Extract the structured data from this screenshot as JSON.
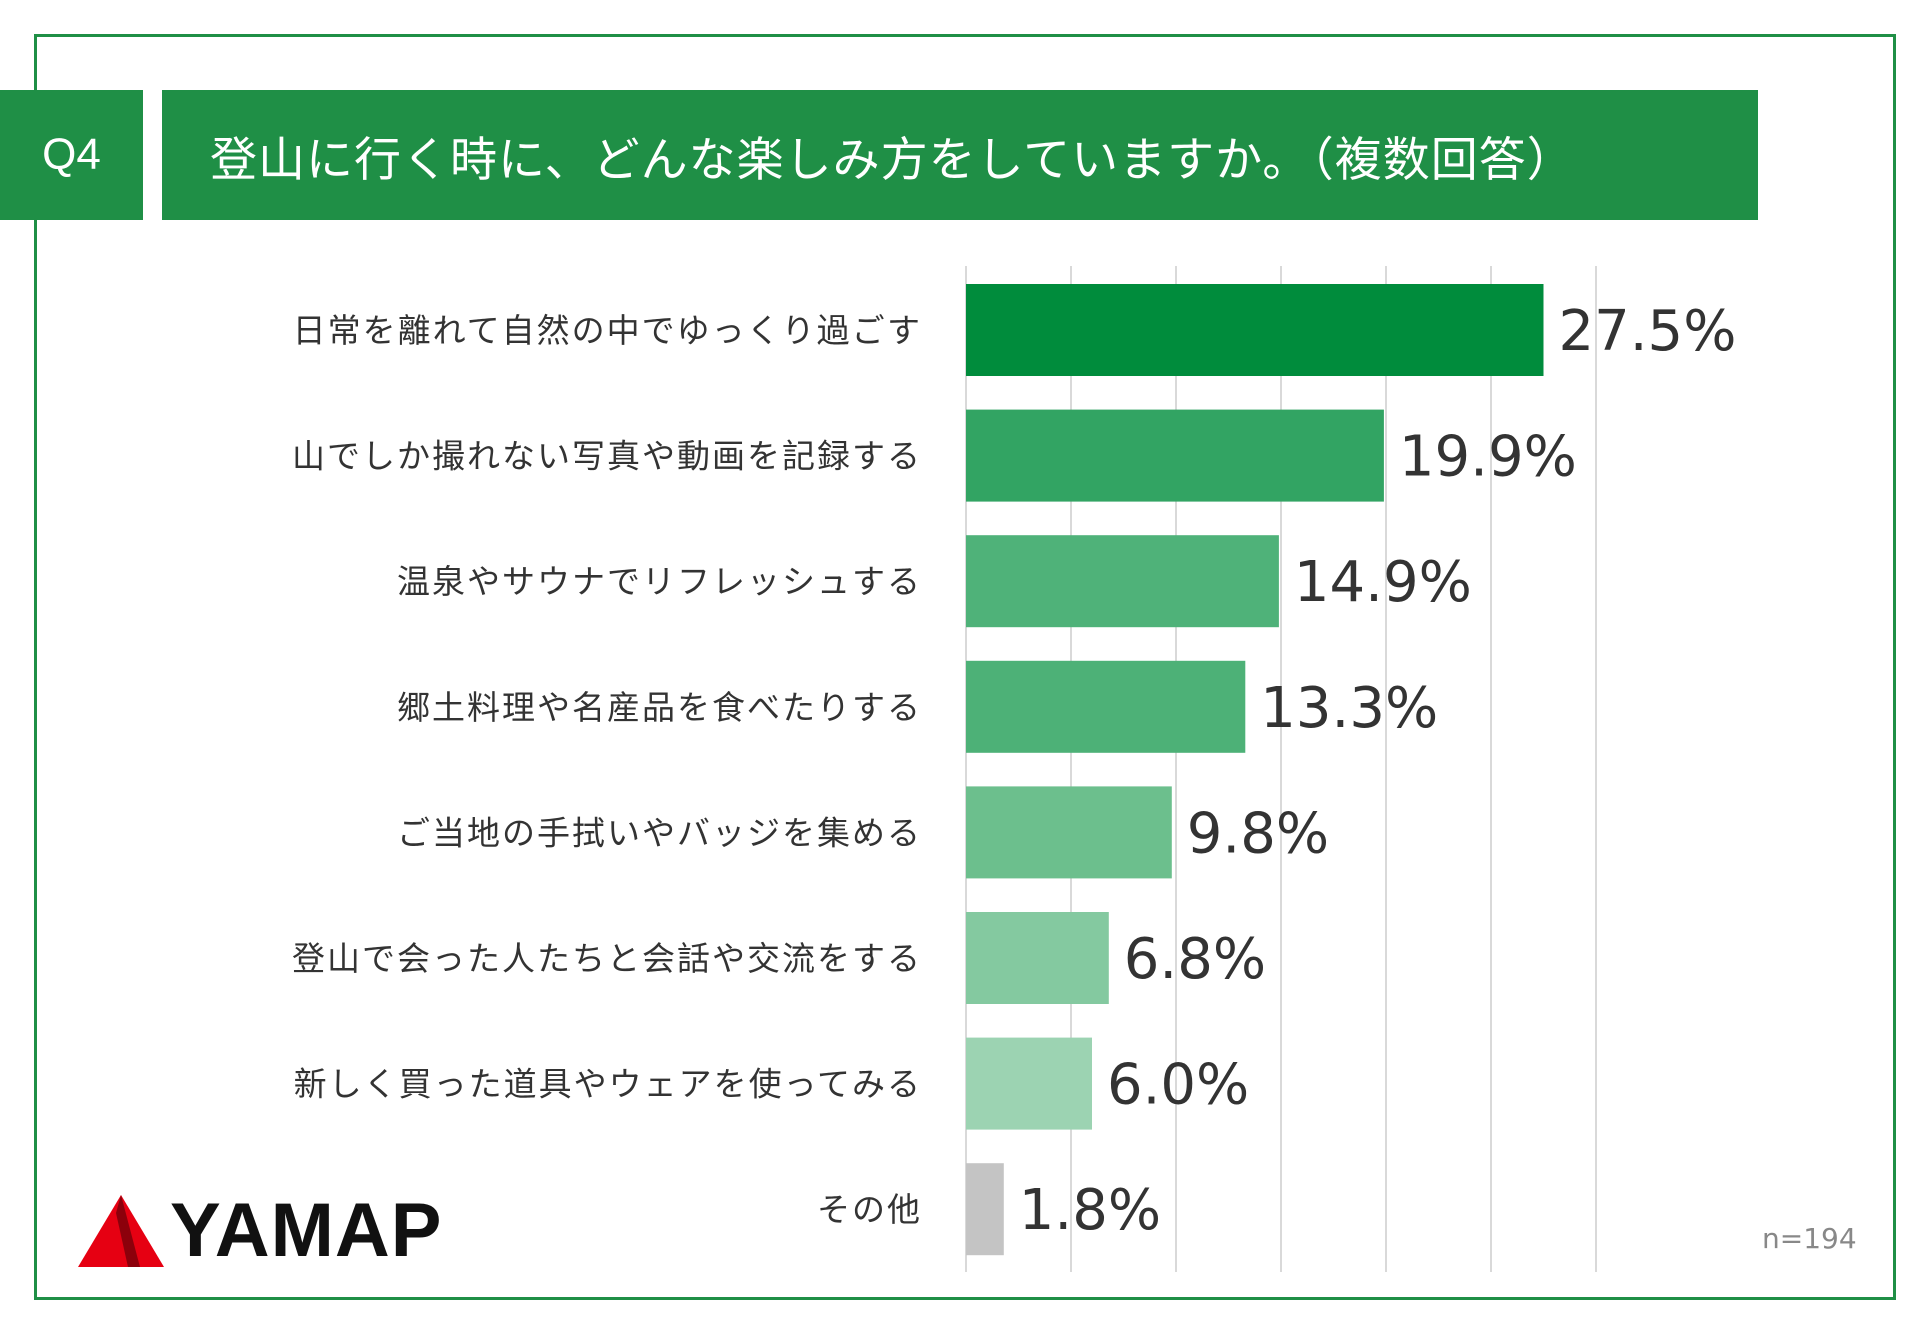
{
  "header": {
    "question_no": "Q4",
    "title": "登山に行く時に、どんな楽しみ方をしていますか。（複数回答）"
  },
  "chart_data": {
    "type": "bar",
    "orientation": "horizontal",
    "title": "登山に行く時に、どんな楽しみ方をしていますか。（複数回答）",
    "categories": [
      "日常を離れて自然の中でゆっくり過ごす",
      "山でしか撮れない写真や動画を記録する",
      "温泉やサウナでリフレッシュする",
      "郷土料理や名産品を食べたりする",
      "ご当地の手拭いやバッジを集める",
      "登山で会った人たちと会話や交流をする",
      "新しく買った道具やウェアを使ってみる",
      "その他"
    ],
    "values": [
      27.5,
      19.9,
      14.9,
      13.3,
      9.8,
      6.8,
      6.0,
      1.8
    ],
    "value_labels": [
      "27.5%",
      "19.9%",
      "14.9%",
      "13.3%",
      "9.8%",
      "6.8%",
      "6.0%",
      "1.8%"
    ],
    "bar_colors": [
      "#008c3c",
      "#32a463",
      "#4fb279",
      "#4db177",
      "#6cbf8d",
      "#84c9a0",
      "#9cd3b2",
      "#c4c4c4"
    ],
    "xlim": [
      0,
      30
    ],
    "grid_step": 5,
    "grid": true,
    "legend": "none"
  },
  "footer": {
    "sample_size": "n=194",
    "logo_text": "YAMAP"
  },
  "colors": {
    "brand_green": "#1f8f46",
    "logo_red": "#e60012"
  }
}
